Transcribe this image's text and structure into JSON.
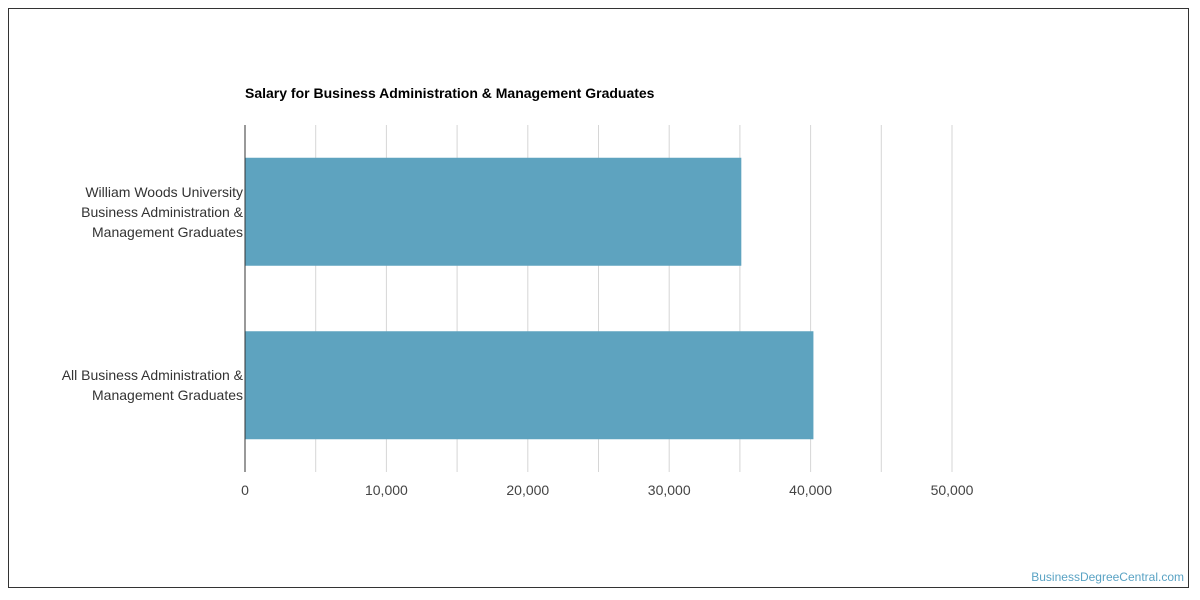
{
  "chart_data": {
    "type": "bar",
    "orientation": "horizontal",
    "title": "Salary for Business Administration & Management Graduates",
    "categories": [
      [
        "William Woods University",
        "Business Administration &",
        "Management Graduates"
      ],
      [
        "All Business Administration &",
        "Management Graduates"
      ]
    ],
    "values": [
      35100,
      40200
    ],
    "xlim": [
      0,
      50000
    ],
    "xticks": [
      0,
      10000,
      20000,
      30000,
      40000,
      50000
    ],
    "xtick_labels": [
      "0",
      "10,000",
      "20,000",
      "30,000",
      "40,000",
      "50,000"
    ],
    "grid": true,
    "bar_color": "#5ea3bf",
    "grid_color": "#d6d6d6",
    "axis_color": "#333333"
  },
  "watermark": "BusinessDegreeCentral.com"
}
